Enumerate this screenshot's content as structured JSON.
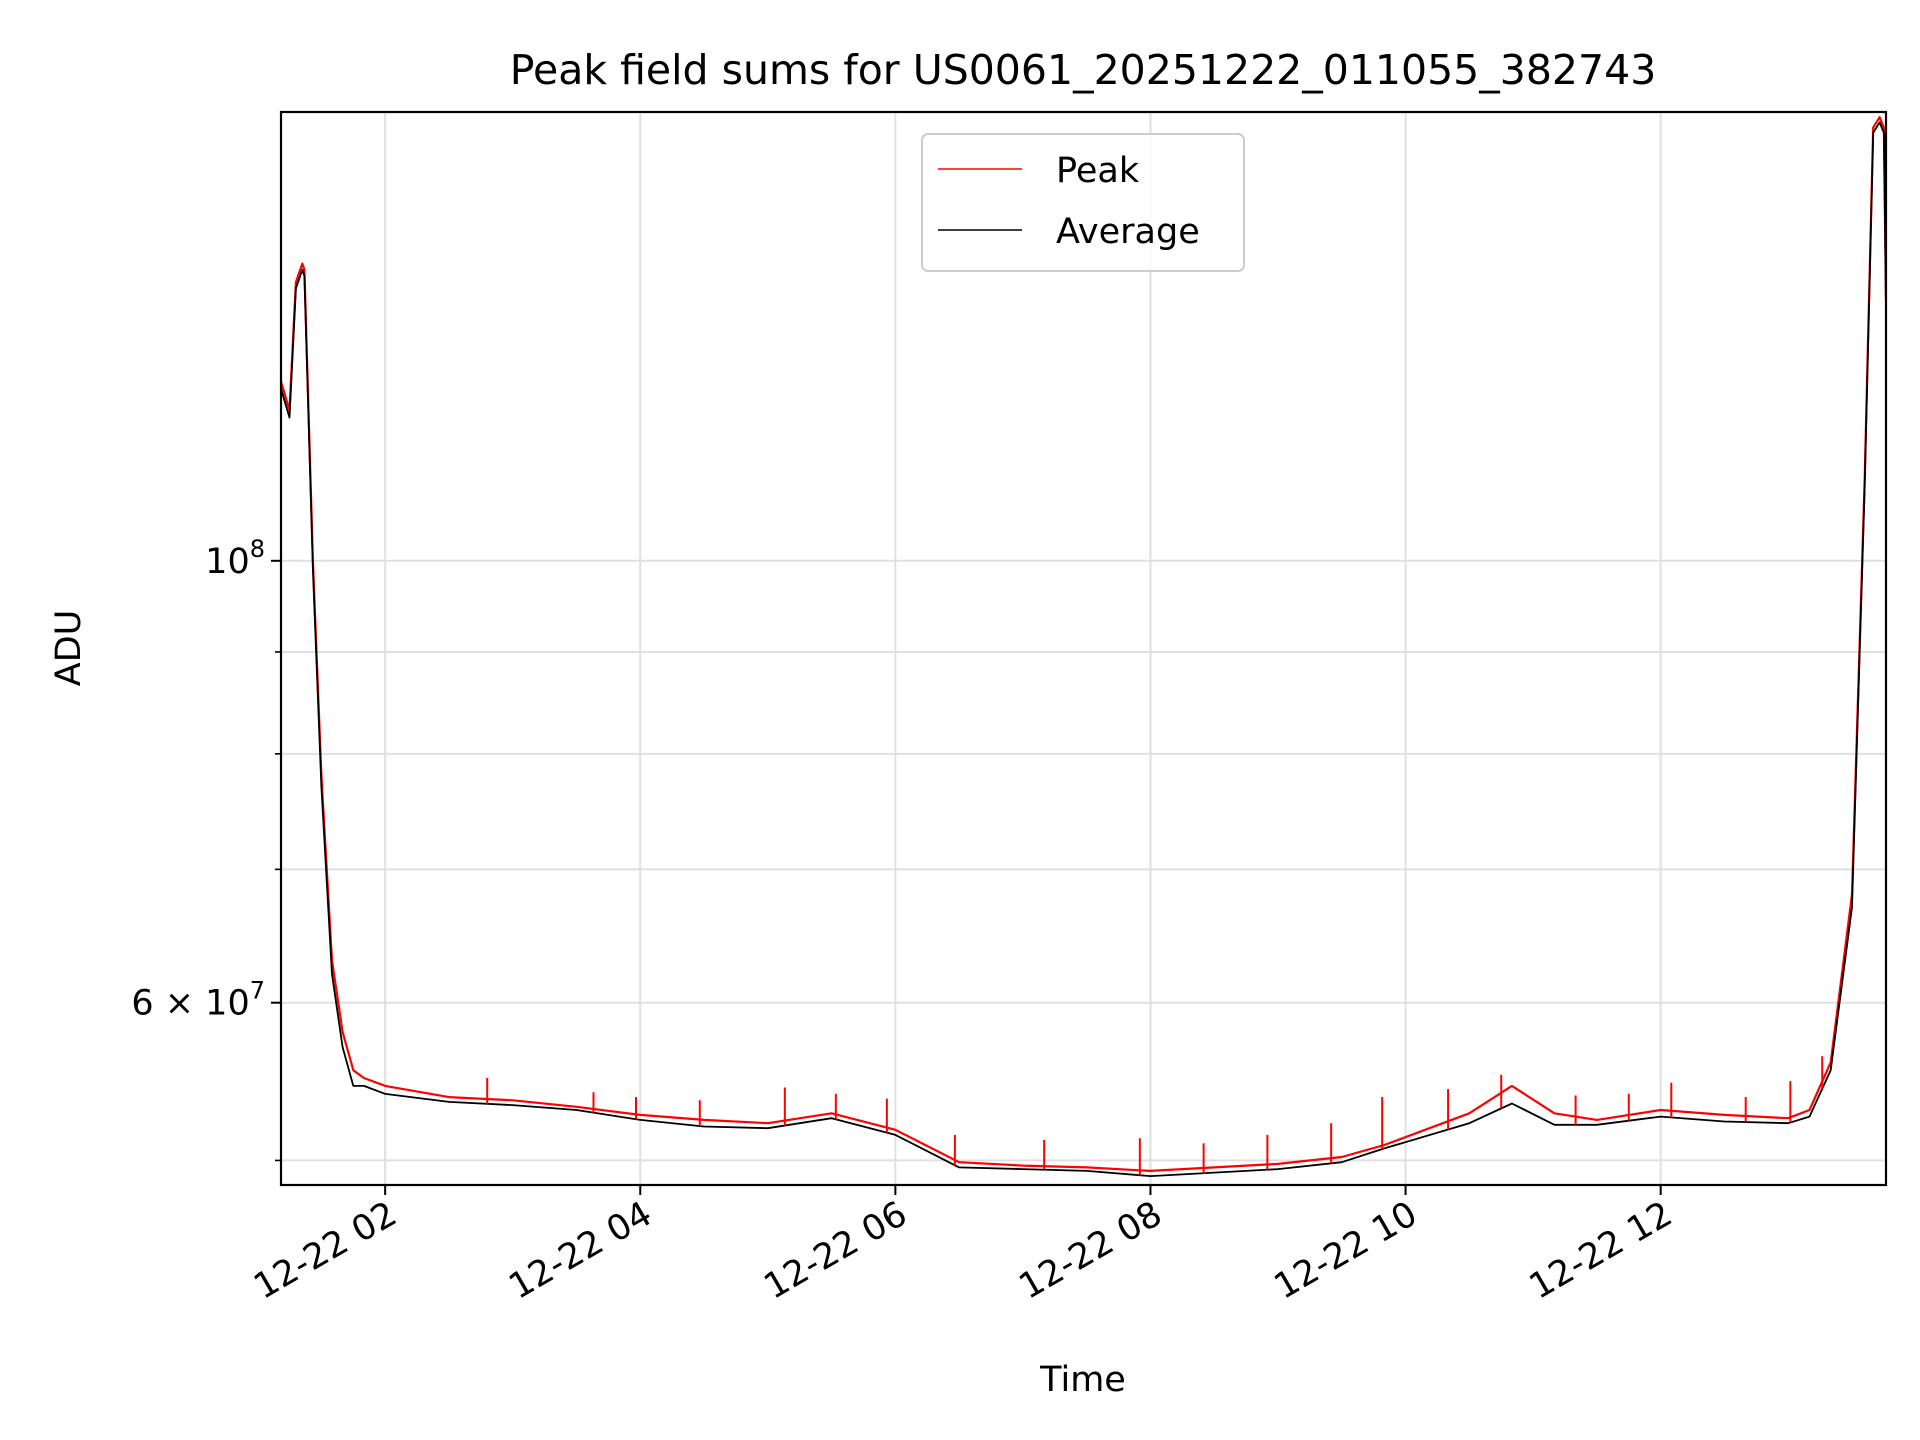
{
  "chart_data": {
    "type": "line",
    "title": "Peak field sums for US0061_20251222_011055_382743",
    "xlabel": "Time",
    "ylabel": "ADU",
    "y_scale": "log",
    "xlim": [
      "2025-12-22 01:11",
      "2025-12-22 13:46"
    ],
    "ylim": [
      48600000,
      168000000
    ],
    "x_ticks": [
      "12-22 02",
      "12-22 04",
      "12-22 06",
      "12-22 08",
      "12-22 10",
      "12-22 12"
    ],
    "y_tick_labels": [
      {
        "value": 100000000,
        "label": "10",
        "exponent": "8"
      },
      {
        "value": 60000000,
        "label": "6 × 10",
        "exponent": "7"
      }
    ],
    "y_minor_ticks": [
      50000000,
      70000000,
      80000000,
      90000000
    ],
    "grid": true,
    "legend": {
      "placement": "upper center",
      "entries": [
        "Peak",
        "Average"
      ]
    },
    "x": [
      "2025-12-22 01:11",
      "2025-12-22 01:15",
      "2025-12-22 01:18",
      "2025-12-22 01:21",
      "2025-12-22 01:22",
      "2025-12-22 01:26",
      "2025-12-22 01:30",
      "2025-12-22 01:35",
      "2025-12-22 01:40",
      "2025-12-22 01:45",
      "2025-12-22 01:50",
      "2025-12-22 02:00",
      "2025-12-22 02:30",
      "2025-12-22 03:00",
      "2025-12-22 03:30",
      "2025-12-22 04:00",
      "2025-12-22 04:30",
      "2025-12-22 05:00",
      "2025-12-22 05:30",
      "2025-12-22 06:00",
      "2025-12-22 06:30",
      "2025-12-22 07:00",
      "2025-12-22 07:30",
      "2025-12-22 08:00",
      "2025-12-22 08:30",
      "2025-12-22 09:00",
      "2025-12-22 09:30",
      "2025-12-22 09:50",
      "2025-12-22 10:30",
      "2025-12-22 10:50",
      "2025-12-22 11:10",
      "2025-12-22 11:30",
      "2025-12-22 12:00",
      "2025-12-22 12:30",
      "2025-12-22 13:00",
      "2025-12-22 13:10",
      "2025-12-22 13:20",
      "2025-12-22 13:30",
      "2025-12-22 13:36",
      "2025-12-22 13:40",
      "2025-12-22 13:43",
      "2025-12-22 13:45",
      "2025-12-22 13:46"
    ],
    "series": [
      {
        "name": "Peak",
        "color": "#ff0000",
        "values": [
          123000000,
          119000000,
          138000000,
          141000000,
          140000000,
          100000000,
          78000000,
          63000000,
          58000000,
          55500000,
          55000000,
          54500000,
          53800000,
          53600000,
          53200000,
          52700000,
          52400000,
          52200000,
          52800000,
          51800000,
          49900000,
          49700000,
          49600000,
          49400000,
          49600000,
          49800000,
          50200000,
          50900000,
          52800000,
          54500000,
          52800000,
          52400000,
          53000000,
          52700000,
          52500000,
          53000000,
          56000000,
          68000000,
          110000000,
          165000000,
          167000000,
          165000000,
          135000000
        ]
      },
      {
        "name": "Average",
        "color": "#000000",
        "values": [
          122000000,
          118000000,
          137000000,
          140000000,
          139000000,
          99000000,
          77000000,
          62000000,
          57000000,
          54500000,
          54500000,
          54000000,
          53500000,
          53300000,
          53000000,
          52400000,
          52000000,
          51900000,
          52500000,
          51500000,
          49600000,
          49500000,
          49400000,
          49100000,
          49300000,
          49500000,
          49900000,
          50700000,
          52200000,
          53400000,
          52100000,
          52100000,
          52600000,
          52300000,
          52200000,
          52600000,
          55500000,
          67000000,
          109000000,
          164000000,
          166000000,
          164000000,
          134000000
        ]
      }
    ],
    "peak_spikes": [
      {
        "x": "2025-12-22 02:48",
        "y": 55000000
      },
      {
        "x": "2025-12-22 03:38",
        "y": 54100000
      },
      {
        "x": "2025-12-22 03:58",
        "y": 53800000
      },
      {
        "x": "2025-12-22 04:28",
        "y": 53600000
      },
      {
        "x": "2025-12-22 05:08",
        "y": 54400000
      },
      {
        "x": "2025-12-22 05:32",
        "y": 54000000
      },
      {
        "x": "2025-12-22 05:56",
        "y": 53700000
      },
      {
        "x": "2025-12-22 06:28",
        "y": 51500000
      },
      {
        "x": "2025-12-22 07:10",
        "y": 51200000
      },
      {
        "x": "2025-12-22 07:55",
        "y": 51300000
      },
      {
        "x": "2025-12-22 08:25",
        "y": 51000000
      },
      {
        "x": "2025-12-22 08:55",
        "y": 51500000
      },
      {
        "x": "2025-12-22 09:25",
        "y": 52200000
      },
      {
        "x": "2025-12-22 09:49",
        "y": 53800000
      },
      {
        "x": "2025-12-22 10:20",
        "y": 54300000
      },
      {
        "x": "2025-12-22 10:45",
        "y": 55200000
      },
      {
        "x": "2025-12-22 11:20",
        "y": 53900000
      },
      {
        "x": "2025-12-22 11:45",
        "y": 54000000
      },
      {
        "x": "2025-12-22 12:05",
        "y": 54700000
      },
      {
        "x": "2025-12-22 12:40",
        "y": 53800000
      },
      {
        "x": "2025-12-22 13:01",
        "y": 54800000
      },
      {
        "x": "2025-12-22 13:16",
        "y": 56400000
      }
    ]
  }
}
